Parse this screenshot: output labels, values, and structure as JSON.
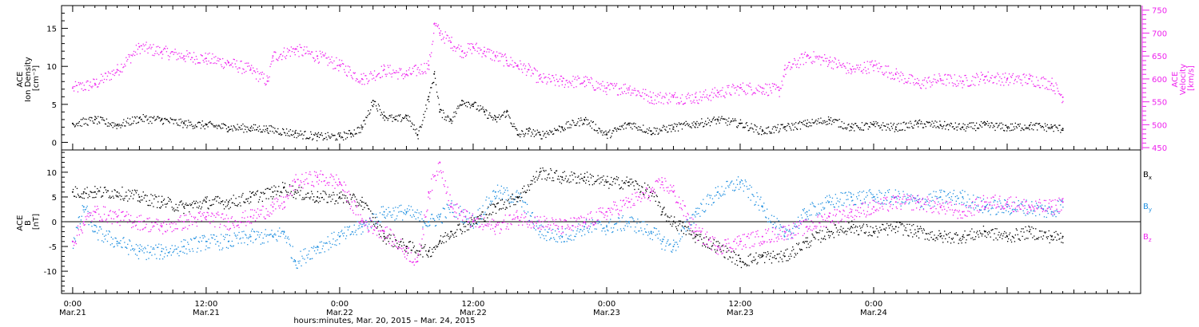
{
  "colors": {
    "black": "#000000",
    "magenta": "#ee22ee",
    "blue": "#1f8fe0"
  },
  "chart_data": [
    {
      "type": "scatter",
      "panel": "top",
      "ylabel": [
        "ACE",
        "Ion Density",
        "[cm⁻³]"
      ],
      "ylim": [
        -1,
        18
      ],
      "yticks": [
        0,
        5,
        10,
        15
      ],
      "y2label": [
        "ACE",
        "Velocity",
        "[km/s]"
      ],
      "y2lim": [
        445,
        760
      ],
      "y2ticks": [
        450,
        500,
        550,
        600,
        650,
        700,
        750
      ],
      "xlim_hours": [
        -1,
        96
      ],
      "series": [
        {
          "axis": "left",
          "color": "#000000",
          "x": [
            0,
            2,
            4,
            6,
            8,
            10,
            12,
            14,
            16,
            17.5,
            20,
            22,
            24,
            25,
            26,
            27,
            28,
            29,
            30,
            31,
            32,
            32.5,
            33,
            34,
            35,
            36,
            37,
            38,
            39,
            40,
            41,
            42,
            44,
            46,
            48,
            50,
            52,
            54,
            56,
            58,
            60,
            62,
            64,
            66,
            68,
            70,
            72,
            74,
            76,
            78,
            80,
            82,
            84,
            86,
            88,
            89
          ],
          "y": [
            2.5,
            3.0,
            2.3,
            3.2,
            3.0,
            2.5,
            2.3,
            2.0,
            1.9,
            1.8,
            1.2,
            0.8,
            0.8,
            1.2,
            2.0,
            5.5,
            3.5,
            3.0,
            3.5,
            1.0,
            6.0,
            9.0,
            4.0,
            3.0,
            5.5,
            5.0,
            4.0,
            3.0,
            4.0,
            1.0,
            1.5,
            1.0,
            2.0,
            3.0,
            1.0,
            2.5,
            1.5,
            2.0,
            2.5,
            3.0,
            2.5,
            1.5,
            2.0,
            2.5,
            3.0,
            2.0,
            2.3,
            2.0,
            2.5,
            2.3,
            2.0,
            2.3,
            2.0,
            2.2,
            2.0,
            1.8
          ]
        },
        {
          "axis": "right",
          "color": "#ee22ee",
          "x": [
            0,
            2,
            4,
            6,
            8,
            10,
            12,
            14,
            16,
            17.5,
            18,
            20,
            22,
            24,
            26,
            28,
            30,
            32,
            32.5,
            33,
            34,
            35,
            36,
            37,
            38,
            39,
            40,
            41,
            42,
            44,
            46,
            48,
            50,
            52,
            54,
            56,
            58,
            60,
            62,
            63.5,
            64,
            66,
            68,
            70,
            72,
            74,
            76,
            78,
            80,
            82,
            84,
            86,
            88,
            89
          ],
          "y": [
            580,
            590,
            620,
            670,
            660,
            650,
            645,
            635,
            620,
            595,
            650,
            665,
            650,
            630,
            600,
            620,
            610,
            630,
            720,
            700,
            680,
            660,
            670,
            660,
            650,
            640,
            630,
            620,
            600,
            595,
            595,
            580,
            580,
            560,
            560,
            560,
            570,
            580,
            580,
            575,
            620,
            650,
            640,
            620,
            630,
            610,
            590,
            600,
            595,
            605,
            600,
            600,
            590,
            560
          ]
        }
      ]
    },
    {
      "type": "scatter",
      "panel": "bottom",
      "ylabel": [
        "ACE",
        "B",
        "[nT]"
      ],
      "ylim": [
        -14.5,
        14.5
      ],
      "yticks": [
        -10,
        -5,
        0,
        5,
        10
      ],
      "zero_line": true,
      "legend": [
        "B",
        "B",
        "B"
      ],
      "legend_subscripts": [
        "x",
        "y",
        "z"
      ],
      "legend_placement": "right",
      "xlim_hours": [
        -1,
        96
      ],
      "series": [
        {
          "name": "Bx",
          "color": "#000000",
          "x": [
            0,
            1,
            2,
            4,
            6,
            8,
            10,
            12,
            14,
            16,
            18,
            19,
            20,
            22,
            24,
            26,
            28,
            30,
            32,
            33,
            34,
            36,
            38,
            40,
            42,
            44,
            46,
            48,
            50,
            52,
            53,
            54,
            56,
            58,
            60,
            62,
            64,
            66,
            68,
            70,
            72,
            74,
            76,
            78,
            80,
            82,
            84,
            86,
            88,
            89
          ],
          "y": [
            6,
            6,
            6,
            6,
            5,
            4,
            3,
            4,
            4,
            5,
            6,
            7,
            6,
            5,
            5,
            4,
            -3,
            -5,
            -6,
            -4,
            -2,
            0,
            3,
            5,
            10,
            9,
            9,
            8,
            8,
            6,
            2,
            0,
            -3,
            -5,
            -8,
            -7,
            -7,
            -4,
            -2,
            -1,
            -2,
            -1,
            -2,
            -3,
            -3,
            -2,
            -3,
            -2,
            -3,
            -3
          ]
        },
        {
          "name": "By",
          "color": "#1f8fe0",
          "x": [
            0,
            1,
            2,
            4,
            6,
            8,
            10,
            12,
            14,
            16,
            18,
            19,
            20,
            22,
            24,
            26,
            28,
            30,
            32,
            33,
            34,
            36,
            38,
            40,
            42,
            44,
            46,
            48,
            50,
            52,
            53,
            54,
            56,
            58,
            60,
            62,
            64,
            66,
            68,
            70,
            72,
            74,
            76,
            78,
            80,
            82,
            84,
            86,
            88,
            89
          ],
          "y": [
            -4,
            3,
            -2,
            -4,
            -6,
            -6,
            -5,
            -4,
            -4,
            -3,
            -3,
            -2,
            -8,
            -5,
            -3,
            -1,
            2,
            2,
            0,
            1,
            3,
            0,
            6,
            5,
            -2,
            -3,
            -1,
            -1,
            0,
            -2,
            -4,
            -5,
            2,
            6,
            8,
            3,
            -3,
            2,
            4,
            5,
            5,
            5,
            4,
            5,
            5,
            3,
            3,
            3,
            2,
            4
          ]
        },
        {
          "name": "Bz",
          "color": "#ee22ee",
          "x": [
            0,
            1,
            2,
            4,
            6,
            8,
            10,
            12,
            14,
            16,
            18,
            19,
            20,
            22,
            24,
            26,
            28,
            30,
            31,
            32,
            33,
            34,
            36,
            38,
            40,
            42,
            44,
            46,
            48,
            50,
            52,
            53,
            54,
            56,
            58,
            60,
            62,
            64,
            66,
            68,
            70,
            72,
            74,
            76,
            78,
            80,
            82,
            84,
            86,
            88,
            89
          ],
          "y": [
            -4,
            0,
            2,
            1,
            0,
            -1,
            0,
            1,
            0,
            1,
            3,
            4,
            8,
            9,
            8,
            0,
            -2,
            -6,
            -8,
            6,
            12,
            3,
            0,
            -1,
            1,
            0,
            -1,
            0,
            2,
            4,
            6,
            8,
            6,
            -2,
            -5,
            -4,
            -3,
            -2,
            -1,
            1,
            2,
            3,
            4,
            4,
            3,
            2,
            4,
            4,
            3,
            3,
            4
          ]
        }
      ]
    }
  ],
  "x_axis": {
    "ticks": [
      {
        "hours": 0,
        "time": "0:00",
        "date": "Mar.21"
      },
      {
        "hours": 12,
        "time": "12:00",
        "date": "Mar.21"
      },
      {
        "hours": 24,
        "time": "0:00",
        "date": "Mar.22"
      },
      {
        "hours": 36,
        "time": "12:00",
        "date": "Mar.22"
      },
      {
        "hours": 48,
        "time": "0:00",
        "date": "Mar.23"
      },
      {
        "hours": 60,
        "time": "12:00",
        "date": "Mar.23"
      },
      {
        "hours": 72,
        "time": "0:00",
        "date": "Mar.24"
      }
    ],
    "label": "hours:minutes, Mar. 20, 2015 – Mar. 24, 2015"
  }
}
